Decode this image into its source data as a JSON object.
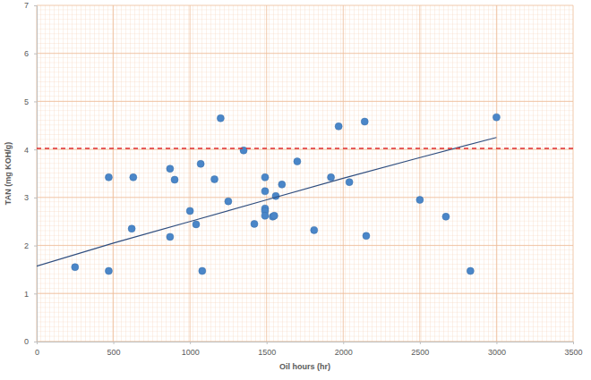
{
  "chart_data": {
    "type": "scatter",
    "x_label": "Oil hours (hr)",
    "y_label": "TAN (mg KOH/g)",
    "xlim": [
      0,
      3500
    ],
    "xticks": [
      0,
      500,
      1000,
      1500,
      2000,
      2500,
      3000,
      3500
    ],
    "ylim": [
      0,
      7
    ],
    "yticks": [
      0,
      1,
      2,
      3,
      4,
      5,
      6,
      7
    ],
    "grid": true,
    "series": [
      {
        "type": "scatter",
        "color": "#4a86c8",
        "marker": "circle",
        "x": [
          250,
          470,
          470,
          620,
          630,
          870,
          870,
          900,
          1000,
          1040,
          1070,
          1080,
          1160,
          1200,
          1250,
          1350,
          1420,
          1490,
          1490,
          1490,
          1490,
          1490,
          1540,
          1550,
          1560,
          1600,
          1700,
          1810,
          1920,
          1970,
          2040,
          2140,
          2150,
          2500,
          2670,
          2830,
          3000
        ],
        "values": [
          1.55,
          1.47,
          3.42,
          2.35,
          3.42,
          3.6,
          2.18,
          3.37,
          2.72,
          2.44,
          3.7,
          1.47,
          3.38,
          4.65,
          2.92,
          3.98,
          2.45,
          3.42,
          3.13,
          2.77,
          2.72,
          2.62,
          2.6,
          2.62,
          3.03,
          3.27,
          3.75,
          2.32,
          3.42,
          4.48,
          3.32,
          4.58,
          2.2,
          2.95,
          2.6,
          1.47,
          4.67
        ]
      },
      {
        "type": "line",
        "color": "#2f4d7e",
        "line_style": "solid",
        "x": [
          0,
          500,
          1000,
          1500,
          2000,
          2500,
          3000
        ],
        "values": [
          1.57,
          2.05,
          2.5,
          2.95,
          3.4,
          3.83,
          4.25
        ]
      },
      {
        "type": "line",
        "color": "#e02b2b",
        "line_style": "dashed",
        "x": [
          0,
          3500
        ],
        "values": [
          4.02,
          4.02
        ]
      }
    ]
  }
}
